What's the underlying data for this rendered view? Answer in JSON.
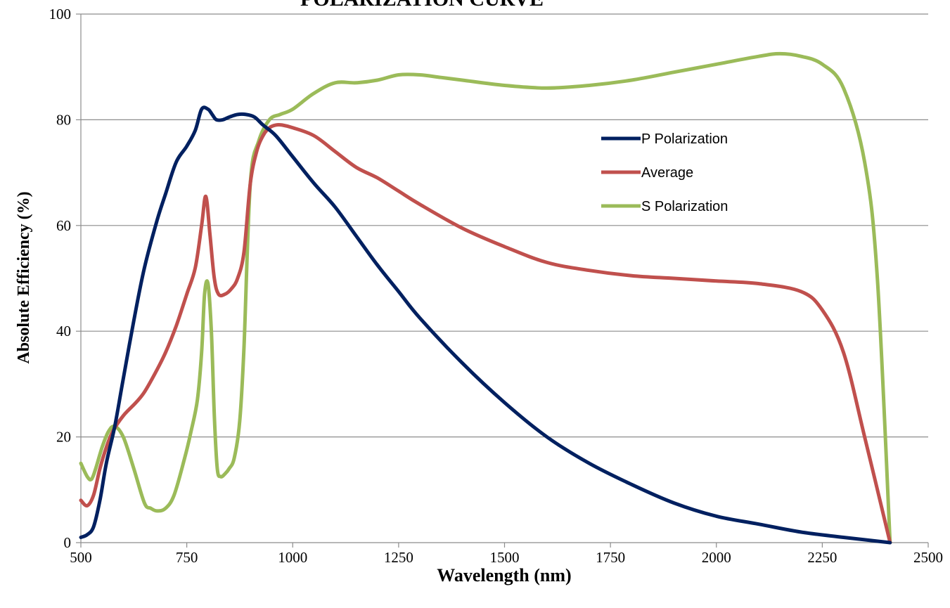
{
  "chart_data": {
    "type": "line",
    "title": "POLARIZATION CURVE",
    "xlabel": "Wavelength (nm)",
    "ylabel": "Absolute Efficiency (%)",
    "xlim": [
      500,
      2500
    ],
    "ylim": [
      0,
      100
    ],
    "xticks": [
      500,
      750,
      1000,
      1250,
      1500,
      1750,
      2000,
      2250,
      2500
    ],
    "yticks": [
      0,
      20,
      40,
      60,
      80,
      100
    ],
    "grid": "horizontal",
    "legend_position": "upper-right-inside",
    "series": [
      {
        "name": "P Polarization",
        "color": "#002060",
        "x": [
          500,
          515,
          530,
          545,
          560,
          580,
          600,
          625,
          650,
          680,
          700,
          725,
          750,
          770,
          785,
          800,
          810,
          820,
          835,
          850,
          870,
          890,
          910,
          930,
          960,
          1000,
          1050,
          1100,
          1150,
          1200,
          1250,
          1300,
          1400,
          1500,
          1600,
          1700,
          1800,
          1900,
          2000,
          2100,
          2200,
          2300,
          2410
        ],
        "y": [
          1,
          1.5,
          3,
          8,
          15,
          22,
          31,
          42,
          52,
          61,
          66,
          72,
          75,
          78,
          82,
          82,
          81,
          80,
          80,
          80.5,
          81,
          81,
          80.5,
          79,
          77,
          73,
          68,
          63.5,
          58,
          52.5,
          47.5,
          42.5,
          34,
          26.5,
          20,
          15,
          11,
          7.5,
          5,
          3.5,
          2,
          1,
          0
        ]
      },
      {
        "name": "Average",
        "color": "#C0504D",
        "x": [
          500,
          515,
          530,
          545,
          560,
          575,
          600,
          630,
          650,
          675,
          700,
          725,
          750,
          770,
          785,
          795,
          805,
          815,
          825,
          840,
          855,
          870,
          885,
          900,
          915,
          930,
          945,
          960,
          975,
          1000,
          1050,
          1100,
          1150,
          1200,
          1250,
          1300,
          1400,
          1500,
          1600,
          1700,
          1800,
          1900,
          2000,
          2100,
          2200,
          2250,
          2300,
          2350,
          2410
        ],
        "y": [
          8,
          7,
          9,
          14,
          18,
          21,
          24,
          26.5,
          28.5,
          32,
          36,
          41,
          47,
          52,
          60,
          65.5,
          58,
          50,
          47,
          47,
          48,
          50,
          55,
          68,
          74,
          77,
          78.5,
          79,
          79,
          78.5,
          77,
          74,
          71,
          69,
          66.5,
          64,
          59.5,
          56,
          53,
          51.5,
          50.5,
          50,
          49.5,
          49,
          47.5,
          44,
          36,
          20,
          0
        ]
      },
      {
        "name": "S Polarization",
        "color": "#9BBB59",
        "x": [
          500,
          515,
          525,
          535,
          550,
          565,
          580,
          600,
          625,
          650,
          665,
          680,
          700,
          720,
          745,
          760,
          775,
          785,
          792,
          800,
          808,
          815,
          822,
          830,
          840,
          850,
          862,
          875,
          885,
          900,
          920,
          945,
          970,
          1000,
          1050,
          1100,
          1150,
          1200,
          1250,
          1300,
          1350,
          1400,
          1500,
          1600,
          1700,
          1800,
          1900,
          2000,
          2100,
          2150,
          2200,
          2250,
          2300,
          2350,
          2380,
          2410
        ],
        "y": [
          15,
          12.5,
          12,
          14,
          18,
          21,
          22,
          20,
          14,
          7.5,
          6.5,
          6,
          6.5,
          9,
          16,
          21,
          27,
          36,
          47,
          49,
          40,
          24,
          14,
          12.5,
          13,
          14,
          16,
          23,
          37,
          68,
          76,
          80,
          81,
          82,
          85,
          87,
          87,
          87.5,
          88.5,
          88.5,
          88,
          87.5,
          86.5,
          86,
          86.5,
          87.5,
          89,
          90.5,
          92,
          92.5,
          92,
          90.5,
          86,
          72,
          50,
          0
        ]
      }
    ]
  }
}
